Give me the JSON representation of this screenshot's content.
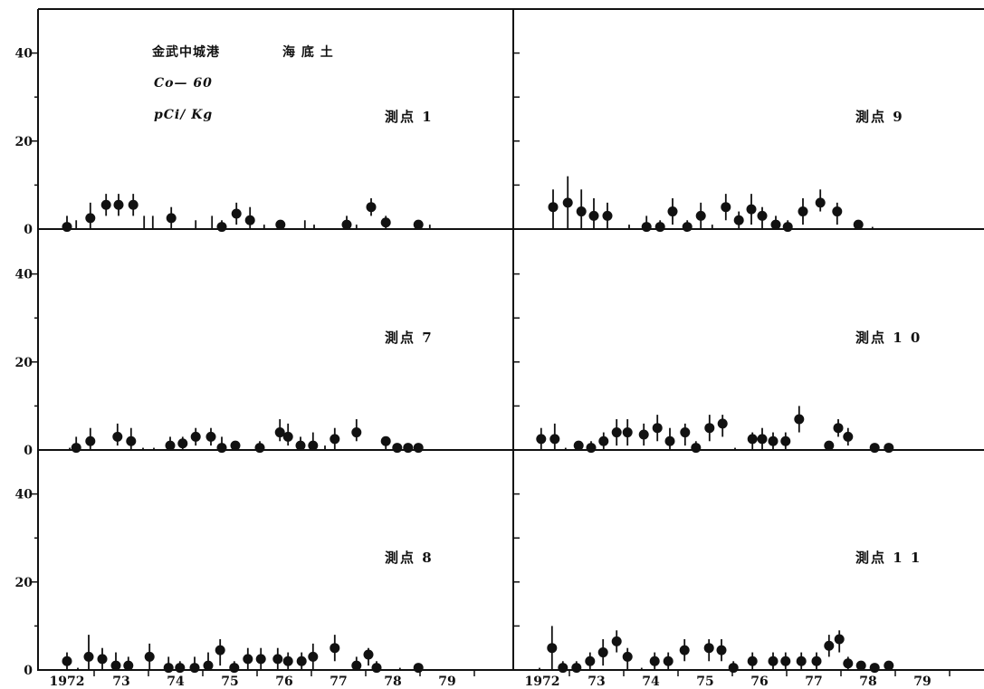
{
  "chart_data": {
    "type": "scatter",
    "header": {
      "site": "金武中城港",
      "medium": "海 底 土",
      "nuclide": "Co— 60",
      "unit": "pCi/ Kg"
    },
    "xlim": [
      1972,
      1980.75
    ],
    "ylim": [
      0,
      50
    ],
    "yticks": [
      0,
      20,
      40
    ],
    "xticklabels": [
      "1972",
      "73",
      "74",
      "75",
      "76",
      "77",
      "78",
      "79"
    ],
    "grid": false,
    "panels": [
      {
        "label": "測点 1",
        "points": [
          {
            "x": 1972.5,
            "y": 0.5,
            "lo": 0,
            "hi": 3
          },
          {
            "x": 1972.93,
            "y": 2.5,
            "lo": 0,
            "hi": 6
          },
          {
            "x": 1973.22,
            "y": 5.5,
            "lo": 3,
            "hi": 8
          },
          {
            "x": 1973.45,
            "y": 5.5,
            "lo": 3,
            "hi": 8
          },
          {
            "x": 1973.72,
            "y": 5.5,
            "lo": 3,
            "hi": 8
          },
          {
            "x": 1974.42,
            "y": 2.5,
            "lo": 0,
            "hi": 5
          },
          {
            "x": 1975.35,
            "y": 0.5,
            "lo": 0,
            "hi": 2
          },
          {
            "x": 1975.62,
            "y": 3.5,
            "lo": 1,
            "hi": 6
          },
          {
            "x": 1975.87,
            "y": 2,
            "lo": 0,
            "hi": 5
          },
          {
            "x": 1976.43,
            "y": 1,
            "lo": 0,
            "hi": 2
          },
          {
            "x": 1977.65,
            "y": 1,
            "lo": 0,
            "hi": 3
          },
          {
            "x": 1978.1,
            "y": 5,
            "lo": 3,
            "hi": 7
          },
          {
            "x": 1978.37,
            "y": 1.5,
            "lo": 0,
            "hi": 3
          },
          {
            "x": 1978.97,
            "y": 1,
            "lo": 0,
            "hi": 2
          }
        ],
        "bars": [
          {
            "x": 1972.67,
            "hi": 2
          },
          {
            "x": 1973.92,
            "hi": 3
          },
          {
            "x": 1974.08,
            "hi": 3
          },
          {
            "x": 1974.87,
            "hi": 2
          },
          {
            "x": 1975.17,
            "hi": 3
          },
          {
            "x": 1976.13,
            "hi": 1
          },
          {
            "x": 1976.88,
            "hi": 2
          },
          {
            "x": 1977.05,
            "hi": 1
          },
          {
            "x": 1977.83,
            "hi": 1
          },
          {
            "x": 1979.18,
            "hi": 1
          }
        ]
      },
      {
        "label": "測点 9",
        "points": [
          {
            "x": 1972.7,
            "y": 5,
            "lo": 0,
            "hi": 9
          },
          {
            "x": 1972.97,
            "y": 6,
            "lo": 0,
            "hi": 12
          },
          {
            "x": 1973.22,
            "y": 4,
            "lo": 0,
            "hi": 9
          },
          {
            "x": 1973.45,
            "y": 3,
            "lo": 0,
            "hi": 7
          },
          {
            "x": 1973.7,
            "y": 3,
            "lo": 0,
            "hi": 6
          },
          {
            "x": 1974.42,
            "y": 0.5,
            "lo": 0,
            "hi": 3
          },
          {
            "x": 1974.67,
            "y": 0.5,
            "lo": 0,
            "hi": 2
          },
          {
            "x": 1974.9,
            "y": 4,
            "lo": 1,
            "hi": 7
          },
          {
            "x": 1975.17,
            "y": 0.5,
            "lo": 0,
            "hi": 2
          },
          {
            "x": 1975.42,
            "y": 3,
            "lo": 0,
            "hi": 6
          },
          {
            "x": 1975.88,
            "y": 5,
            "lo": 2,
            "hi": 8
          },
          {
            "x": 1976.12,
            "y": 2,
            "lo": 0,
            "hi": 4
          },
          {
            "x": 1976.35,
            "y": 4.5,
            "lo": 1,
            "hi": 8
          },
          {
            "x": 1976.55,
            "y": 3,
            "lo": 0,
            "hi": 5
          },
          {
            "x": 1976.8,
            "y": 1,
            "lo": 0,
            "hi": 3
          },
          {
            "x": 1977.02,
            "y": 0.5,
            "lo": 0,
            "hi": 2
          },
          {
            "x": 1977.3,
            "y": 4,
            "lo": 1,
            "hi": 7
          },
          {
            "x": 1977.62,
            "y": 6,
            "lo": 4,
            "hi": 9
          },
          {
            "x": 1977.93,
            "y": 4,
            "lo": 1,
            "hi": 6
          },
          {
            "x": 1978.32,
            "y": 1,
            "lo": 0,
            "hi": 2
          }
        ],
        "bars": [
          {
            "x": 1974.1,
            "hi": 1
          },
          {
            "x": 1975.63,
            "hi": 1
          },
          {
            "x": 1978.58,
            "hi": 0.5
          }
        ]
      },
      {
        "label": "測点 7",
        "points": [
          {
            "x": 1972.67,
            "y": 0.5,
            "lo": 0,
            "hi": 3
          },
          {
            "x": 1972.93,
            "y": 2,
            "lo": 0,
            "hi": 5
          },
          {
            "x": 1973.43,
            "y": 3,
            "lo": 1,
            "hi": 6
          },
          {
            "x": 1973.68,
            "y": 2,
            "lo": 0,
            "hi": 5
          },
          {
            "x": 1974.4,
            "y": 1,
            "lo": 0,
            "hi": 3
          },
          {
            "x": 1974.63,
            "y": 1.5,
            "lo": 0,
            "hi": 3
          },
          {
            "x": 1974.87,
            "y": 3,
            "lo": 1,
            "hi": 5
          },
          {
            "x": 1975.15,
            "y": 3,
            "lo": 1,
            "hi": 5
          },
          {
            "x": 1975.35,
            "y": 0.5,
            "lo": 0,
            "hi": 3
          },
          {
            "x": 1975.6,
            "y": 1,
            "lo": 0,
            "hi": 2
          },
          {
            "x": 1976.05,
            "y": 0.5,
            "lo": 0,
            "hi": 2
          },
          {
            "x": 1976.42,
            "y": 4,
            "lo": 2,
            "hi": 7
          },
          {
            "x": 1976.57,
            "y": 3,
            "lo": 1,
            "hi": 6
          },
          {
            "x": 1976.8,
            "y": 1,
            "lo": 0,
            "hi": 3
          },
          {
            "x": 1977.03,
            "y": 1,
            "lo": 0,
            "hi": 4
          },
          {
            "x": 1977.43,
            "y": 2.5,
            "lo": 0,
            "hi": 5
          },
          {
            "x": 1977.83,
            "y": 4,
            "lo": 2,
            "hi": 7
          },
          {
            "x": 1978.37,
            "y": 2,
            "lo": 0,
            "hi": 3
          },
          {
            "x": 1978.58,
            "y": 0.5,
            "lo": 0,
            "hi": 1
          },
          {
            "x": 1978.78,
            "y": 0.5,
            "lo": 0,
            "hi": 1
          },
          {
            "x": 1978.97,
            "y": 0.5,
            "lo": 0,
            "hi": 1
          }
        ],
        "bars": [
          {
            "x": 1972.55,
            "hi": 0.5
          },
          {
            "x": 1973.9,
            "hi": 0.5
          },
          {
            "x": 1974.1,
            "hi": 0.5
          },
          {
            "x": 1977.25,
            "hi": 1
          }
        ]
      },
      {
        "label": "測点 1 0",
        "points": [
          {
            "x": 1972.48,
            "y": 2.5,
            "lo": 0,
            "hi": 5
          },
          {
            "x": 1972.73,
            "y": 2.5,
            "lo": 0,
            "hi": 6
          },
          {
            "x": 1973.17,
            "y": 1,
            "lo": 0,
            "hi": 2
          },
          {
            "x": 1973.4,
            "y": 0.5,
            "lo": 0,
            "hi": 2
          },
          {
            "x": 1973.63,
            "y": 2,
            "lo": 0,
            "hi": 4
          },
          {
            "x": 1973.87,
            "y": 4,
            "lo": 1,
            "hi": 7
          },
          {
            "x": 1974.07,
            "y": 4,
            "lo": 1,
            "hi": 7
          },
          {
            "x": 1974.37,
            "y": 3.5,
            "lo": 1,
            "hi": 6
          },
          {
            "x": 1974.62,
            "y": 5,
            "lo": 2,
            "hi": 8
          },
          {
            "x": 1974.85,
            "y": 2,
            "lo": 0,
            "hi": 5
          },
          {
            "x": 1975.13,
            "y": 4,
            "lo": 1,
            "hi": 6
          },
          {
            "x": 1975.33,
            "y": 0.5,
            "lo": 0,
            "hi": 2
          },
          {
            "x": 1975.58,
            "y": 5,
            "lo": 2,
            "hi": 8
          },
          {
            "x": 1975.82,
            "y": 6,
            "lo": 3,
            "hi": 8
          },
          {
            "x": 1976.37,
            "y": 2.5,
            "lo": 0,
            "hi": 4
          },
          {
            "x": 1976.55,
            "y": 2.5,
            "lo": 0,
            "hi": 5
          },
          {
            "x": 1976.75,
            "y": 2,
            "lo": 0,
            "hi": 4
          },
          {
            "x": 1976.98,
            "y": 2,
            "lo": 0,
            "hi": 4
          },
          {
            "x": 1977.23,
            "y": 7,
            "lo": 4,
            "hi": 10
          },
          {
            "x": 1977.78,
            "y": 1,
            "lo": 0,
            "hi": 2
          },
          {
            "x": 1977.95,
            "y": 5,
            "lo": 3,
            "hi": 7
          },
          {
            "x": 1978.13,
            "y": 3,
            "lo": 1,
            "hi": 5
          },
          {
            "x": 1978.62,
            "y": 0.5,
            "lo": 0,
            "hi": 1
          },
          {
            "x": 1978.88,
            "y": 0.5,
            "lo": 0,
            "hi": 1
          }
        ],
        "bars": [
          {
            "x": 1972.93,
            "hi": 0.5
          },
          {
            "x": 1976.05,
            "hi": 0.5
          }
        ]
      },
      {
        "label": "測点 8",
        "points": [
          {
            "x": 1972.5,
            "y": 2,
            "lo": 0,
            "hi": 4
          },
          {
            "x": 1972.9,
            "y": 3,
            "lo": 0,
            "hi": 8
          },
          {
            "x": 1973.15,
            "y": 2.5,
            "lo": 0,
            "hi": 5
          },
          {
            "x": 1973.4,
            "y": 1,
            "lo": 0,
            "hi": 4
          },
          {
            "x": 1973.63,
            "y": 1,
            "lo": 0,
            "hi": 3
          },
          {
            "x": 1974.02,
            "y": 3,
            "lo": 0,
            "hi": 6
          },
          {
            "x": 1974.37,
            "y": 0.5,
            "lo": 0,
            "hi": 3
          },
          {
            "x": 1974.58,
            "y": 0.5,
            "lo": 0,
            "hi": 2
          },
          {
            "x": 1974.85,
            "y": 0.5,
            "lo": 0,
            "hi": 3
          },
          {
            "x": 1975.1,
            "y": 1,
            "lo": 0,
            "hi": 4
          },
          {
            "x": 1975.32,
            "y": 4.5,
            "lo": 1,
            "hi": 7
          },
          {
            "x": 1975.58,
            "y": 0.5,
            "lo": 0,
            "hi": 2
          },
          {
            "x": 1975.83,
            "y": 2.5,
            "lo": 0,
            "hi": 5
          },
          {
            "x": 1976.07,
            "y": 2.5,
            "lo": 0,
            "hi": 5
          },
          {
            "x": 1976.38,
            "y": 2.5,
            "lo": 0,
            "hi": 5
          },
          {
            "x": 1976.57,
            "y": 2,
            "lo": 0,
            "hi": 4
          },
          {
            "x": 1976.82,
            "y": 2,
            "lo": 0,
            "hi": 4
          },
          {
            "x": 1977.03,
            "y": 3,
            "lo": 0,
            "hi": 6
          },
          {
            "x": 1977.43,
            "y": 5,
            "lo": 2,
            "hi": 8
          },
          {
            "x": 1977.83,
            "y": 1,
            "lo": 0,
            "hi": 3
          },
          {
            "x": 1978.05,
            "y": 3.5,
            "lo": 1,
            "hi": 5
          },
          {
            "x": 1978.2,
            "y": 0.5,
            "lo": 0,
            "hi": 2
          },
          {
            "x": 1978.97,
            "y": 0.5,
            "lo": 0,
            "hi": 1
          }
        ],
        "bars": [
          {
            "x": 1972.7,
            "hi": 0.5
          },
          {
            "x": 1978.63,
            "hi": 0.5
          }
        ]
      },
      {
        "label": "測点 1 1",
        "points": [
          {
            "x": 1972.68,
            "y": 5,
            "lo": 0,
            "hi": 10
          },
          {
            "x": 1972.88,
            "y": 0.5,
            "lo": 0,
            "hi": 2
          },
          {
            "x": 1973.13,
            "y": 0.5,
            "lo": 0,
            "hi": 2
          },
          {
            "x": 1973.38,
            "y": 2,
            "lo": 0,
            "hi": 4
          },
          {
            "x": 1973.62,
            "y": 4,
            "lo": 1,
            "hi": 7
          },
          {
            "x": 1973.87,
            "y": 6.5,
            "lo": 4,
            "hi": 9
          },
          {
            "x": 1974.07,
            "y": 3,
            "lo": 0,
            "hi": 5
          },
          {
            "x": 1974.57,
            "y": 2,
            "lo": 0,
            "hi": 4
          },
          {
            "x": 1974.82,
            "y": 2,
            "lo": 0,
            "hi": 4
          },
          {
            "x": 1975.12,
            "y": 4.5,
            "lo": 2,
            "hi": 7
          },
          {
            "x": 1975.57,
            "y": 5,
            "lo": 2,
            "hi": 7
          },
          {
            "x": 1975.8,
            "y": 4.5,
            "lo": 2,
            "hi": 7
          },
          {
            "x": 1976.02,
            "y": 0.5,
            "lo": 0,
            "hi": 2
          },
          {
            "x": 1976.37,
            "y": 2,
            "lo": 0,
            "hi": 4
          },
          {
            "x": 1976.75,
            "y": 2,
            "lo": 0,
            "hi": 4
          },
          {
            "x": 1976.98,
            "y": 2,
            "lo": 0,
            "hi": 4
          },
          {
            "x": 1977.27,
            "y": 2,
            "lo": 0,
            "hi": 4
          },
          {
            "x": 1977.55,
            "y": 2,
            "lo": 0,
            "hi": 4
          },
          {
            "x": 1977.78,
            "y": 5.5,
            "lo": 3,
            "hi": 8
          },
          {
            "x": 1977.97,
            "y": 7,
            "lo": 4,
            "hi": 9
          },
          {
            "x": 1978.13,
            "y": 1.5,
            "lo": 0,
            "hi": 3
          },
          {
            "x": 1978.37,
            "y": 1,
            "lo": 0,
            "hi": 2
          },
          {
            "x": 1978.62,
            "y": 0.5,
            "lo": 0,
            "hi": 1
          },
          {
            "x": 1978.88,
            "y": 1,
            "lo": 0,
            "hi": 2
          }
        ],
        "bars": [
          {
            "x": 1972.45,
            "hi": 0.5
          },
          {
            "x": 1974.33,
            "hi": 0.5
          }
        ]
      }
    ]
  }
}
